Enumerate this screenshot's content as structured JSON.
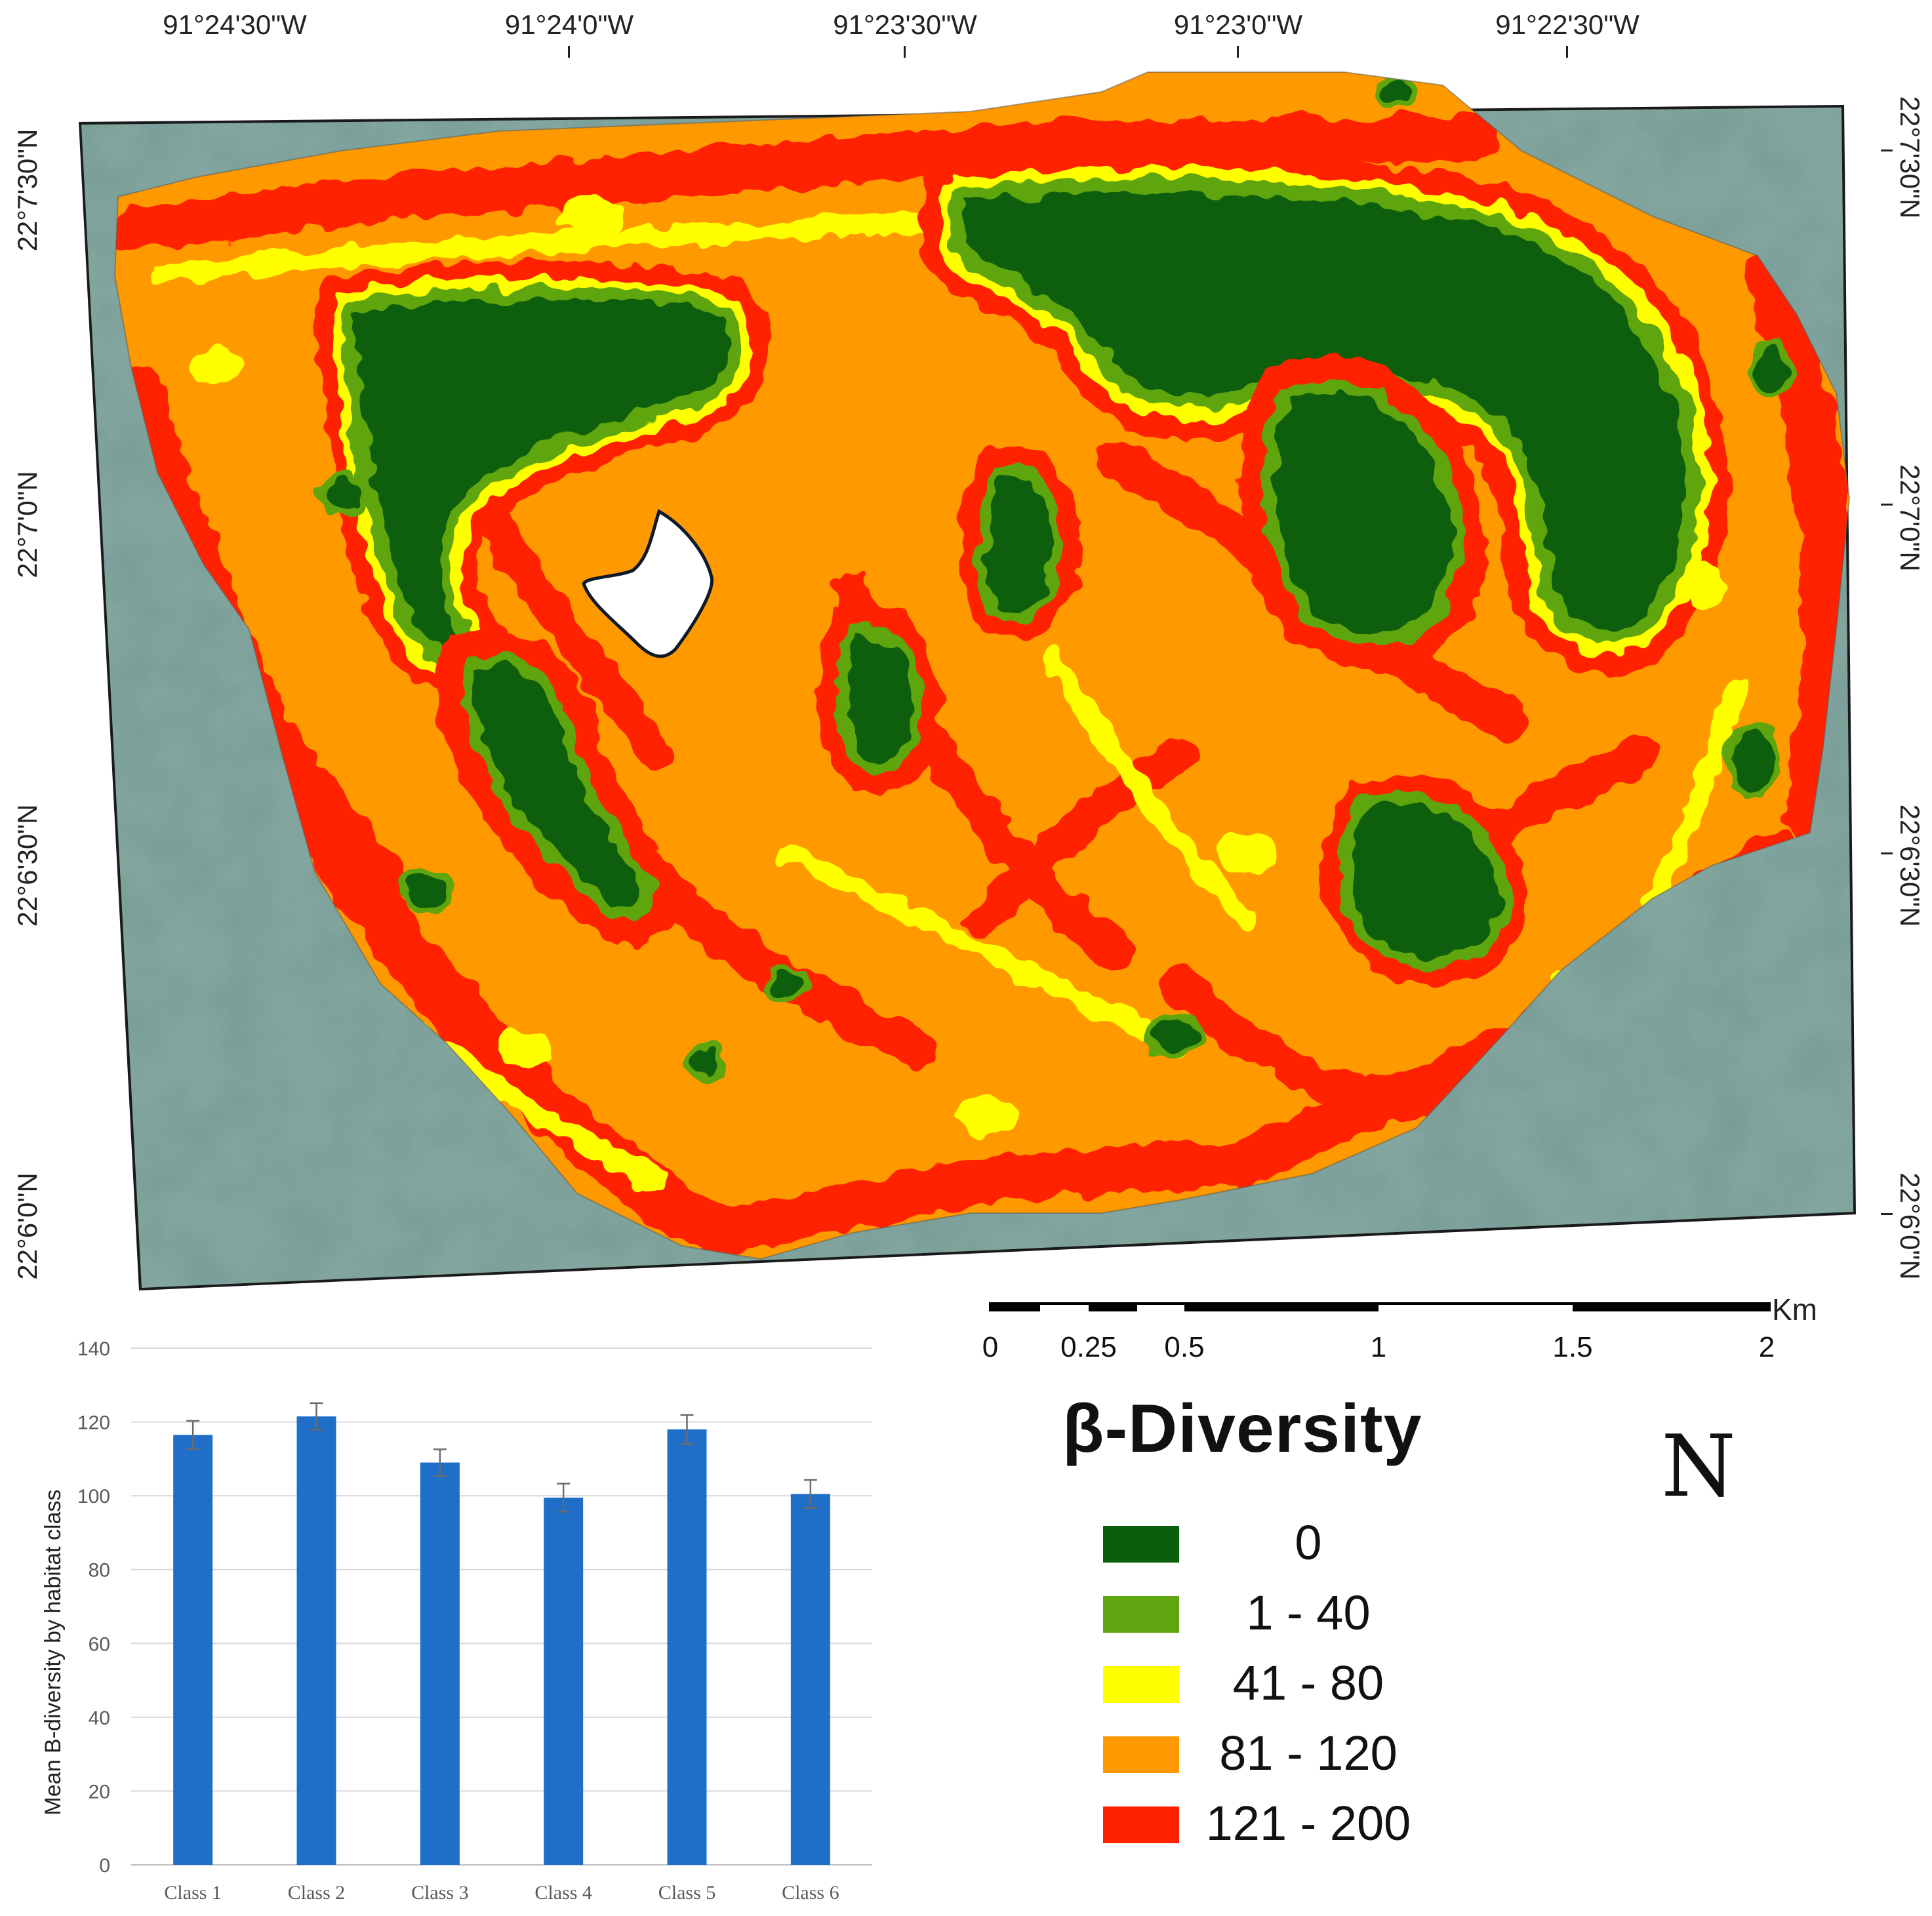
{
  "map": {
    "top_longitudes": [
      "91°24'30\"W",
      "91°24'0\"W",
      "91°23'30\"W",
      "91°23'0\"W",
      "91°22'30\"W"
    ],
    "left_latitudes": [
      "22°7'30\"N",
      "22°7'0\"N",
      "22°6'30\"N",
      "22°6'0\"N"
    ],
    "right_latitudes": [
      "22°7'30\"N",
      "22°7'0\"N",
      "22°6'30\"N",
      "22°6'0\"N"
    ],
    "colors": {
      "water": "#6f9c9a",
      "class_0": "#0b5e0b",
      "class_1_40": "#5ea50f",
      "class_41_80": "#ffff00",
      "class_81_120": "#ff9900",
      "class_121_200": "#ff2200"
    }
  },
  "scale_bar": {
    "unit": "Km",
    "labels": [
      "0",
      "0.25",
      "0.5",
      "1",
      "1.5",
      "2"
    ]
  },
  "legend": {
    "title": "β-Diversity",
    "items": [
      {
        "label": "0",
        "color": "#0b5e0b"
      },
      {
        "label": "1 - 40",
        "color": "#5ea50f"
      },
      {
        "label": "41 - 80",
        "color": "#ffff00"
      },
      {
        "label": "81 - 120",
        "color": "#ff9900"
      },
      {
        "label": "121 - 200",
        "color": "#ff2200"
      }
    ]
  },
  "north_arrow": {
    "letter": "N"
  },
  "chart_data": {
    "type": "bar",
    "title": "",
    "xlabel": "",
    "ylabel": "Mean B-diversity by habitat class",
    "categories": [
      "Class 1",
      "Class 2",
      "Class 3",
      "Class 4",
      "Class 5",
      "Class 6"
    ],
    "values": [
      116.5,
      121.5,
      109.0,
      99.5,
      118.0,
      100.5
    ],
    "error": [
      3.8,
      3.6,
      3.6,
      3.8,
      3.9,
      3.8
    ],
    "ylim": [
      0,
      140
    ],
    "yticks": [
      0,
      20,
      40,
      60,
      80,
      100,
      120,
      140
    ],
    "grid": true,
    "bar_color": "#1f6fc8"
  }
}
